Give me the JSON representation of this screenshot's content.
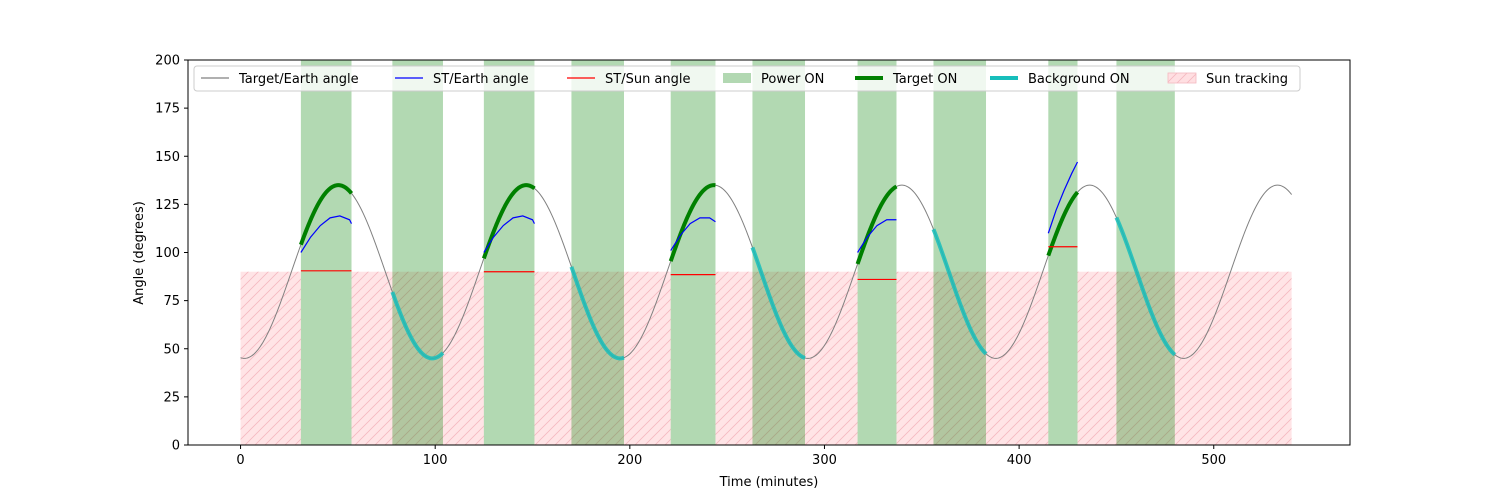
{
  "chart_data": {
    "type": "line",
    "title": "",
    "xlabel": "Time (minutes)",
    "ylabel": "Angle (degrees)",
    "xlim": [
      -27,
      570
    ],
    "ylim": [
      0,
      200
    ],
    "xticks": [
      0,
      100,
      200,
      300,
      400,
      500
    ],
    "yticks": [
      0,
      25,
      50,
      75,
      100,
      125,
      150,
      175,
      200
    ],
    "legend_position": "top",
    "legend": [
      {
        "label": "Target/Earth angle",
        "kind": "line",
        "color": "#808080"
      },
      {
        "label": "ST/Earth angle",
        "kind": "line",
        "color": "#0000ff"
      },
      {
        "label": "ST/Sun angle",
        "kind": "line",
        "color": "#ff0000"
      },
      {
        "label": "Power ON",
        "kind": "patch",
        "color": "#b2d8b2"
      },
      {
        "label": "Target ON",
        "kind": "thickline",
        "color": "#008000"
      },
      {
        "label": "Background ON",
        "kind": "thickline",
        "color": "#17bebb"
      },
      {
        "label": "Sun tracking",
        "kind": "hatch",
        "color": "#ffdfe2"
      }
    ],
    "target_earth": {
      "t_start": 0,
      "t_end": 540,
      "center": 90,
      "amplitude": 45,
      "period": 96.5,
      "phase_t": 2,
      "color": "#808080"
    },
    "power_on": [
      [
        31,
        57
      ],
      [
        78,
        104
      ],
      [
        125,
        151
      ],
      [
        170,
        197
      ],
      [
        221,
        244
      ],
      [
        263,
        290
      ],
      [
        317,
        337
      ],
      [
        356,
        383
      ],
      [
        415,
        430
      ],
      [
        450,
        480
      ]
    ],
    "sun_tracking": {
      "level": 90,
      "intervals": [
        [
          0,
          31
        ],
        [
          57,
          125
        ],
        [
          151,
          221
        ],
        [
          244,
          317
        ],
        [
          337,
          415
        ],
        [
          430,
          540
        ]
      ]
    },
    "target_on": [
      [
        31,
        57
      ],
      [
        125,
        151
      ],
      [
        221,
        244
      ],
      [
        317,
        337
      ],
      [
        415,
        430
      ]
    ],
    "background_on": [
      [
        78,
        104
      ],
      [
        170,
        197
      ],
      [
        263,
        290
      ],
      [
        356,
        383
      ],
      [
        450,
        480
      ]
    ],
    "st_earth": [
      {
        "x": [
          31,
          36,
          41,
          46,
          51,
          56,
          57
        ],
        "y": [
          100,
          108,
          114,
          118,
          119,
          117,
          115
        ]
      },
      {
        "x": [
          125,
          130,
          135,
          140,
          145,
          150,
          151
        ],
        "y": [
          100,
          108,
          114,
          118,
          119,
          117,
          115
        ]
      },
      {
        "x": [
          221,
          226,
          231,
          236,
          241,
          244
        ],
        "y": [
          101,
          109,
          115,
          118,
          118,
          116
        ]
      },
      {
        "x": [
          317,
          322,
          327,
          332,
          337
        ],
        "y": [
          100,
          108,
          114,
          117,
          117
        ]
      },
      {
        "x": [
          415,
          419,
          423,
          427,
          430
        ],
        "y": [
          110,
          122,
          132,
          141,
          147
        ]
      }
    ],
    "st_sun": [
      {
        "x": [
          31,
          57
        ],
        "y": [
          90.5,
          90.5
        ]
      },
      {
        "x": [
          125,
          151
        ],
        "y": [
          90,
          90
        ]
      },
      {
        "x": [
          221,
          244
        ],
        "y": [
          88.5,
          88.5
        ]
      },
      {
        "x": [
          317,
          337
        ],
        "y": [
          86,
          86
        ]
      },
      {
        "x": [
          415,
          430
        ],
        "y": [
          103,
          103
        ]
      }
    ]
  }
}
